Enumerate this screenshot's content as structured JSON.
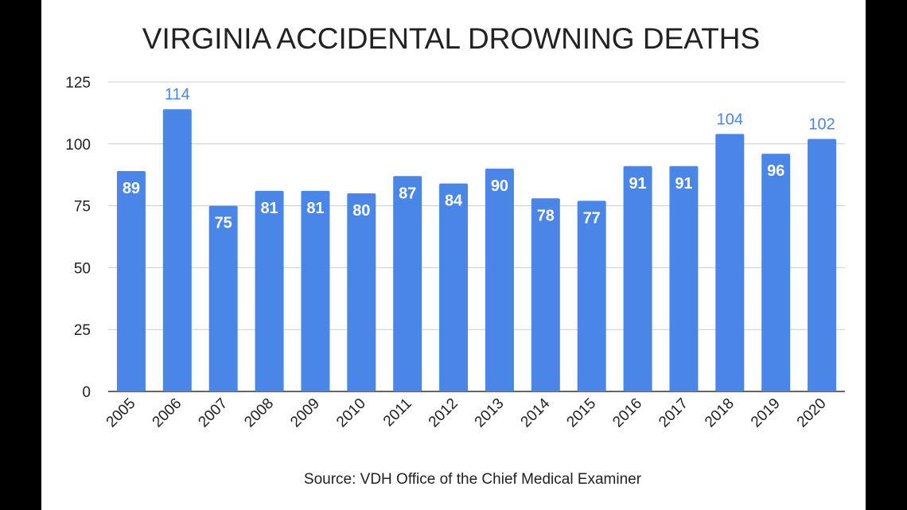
{
  "chart_data": {
    "type": "bar",
    "title": "VIRGINIA ACCIDENTAL DROWNING DEATHS",
    "source": "Source: VDH Office of the Chief Medical Examiner",
    "categories": [
      "2005",
      "2006",
      "2007",
      "2008",
      "2009",
      "2010",
      "2011",
      "2012",
      "2013",
      "2014",
      "2015",
      "2016",
      "2017",
      "2018",
      "2019",
      "2020"
    ],
    "values": [
      89,
      114,
      75,
      81,
      81,
      80,
      87,
      84,
      90,
      78,
      77,
      91,
      91,
      104,
      96,
      102
    ],
    "ylim": [
      0,
      125
    ],
    "yticks": [
      "0",
      "25",
      "50",
      "75",
      "100",
      "125"
    ],
    "grid": true,
    "bar_color": "#4a86e8",
    "data_label_inside_color": "#ffffff",
    "data_label_outside_color": "#4a86e8"
  }
}
